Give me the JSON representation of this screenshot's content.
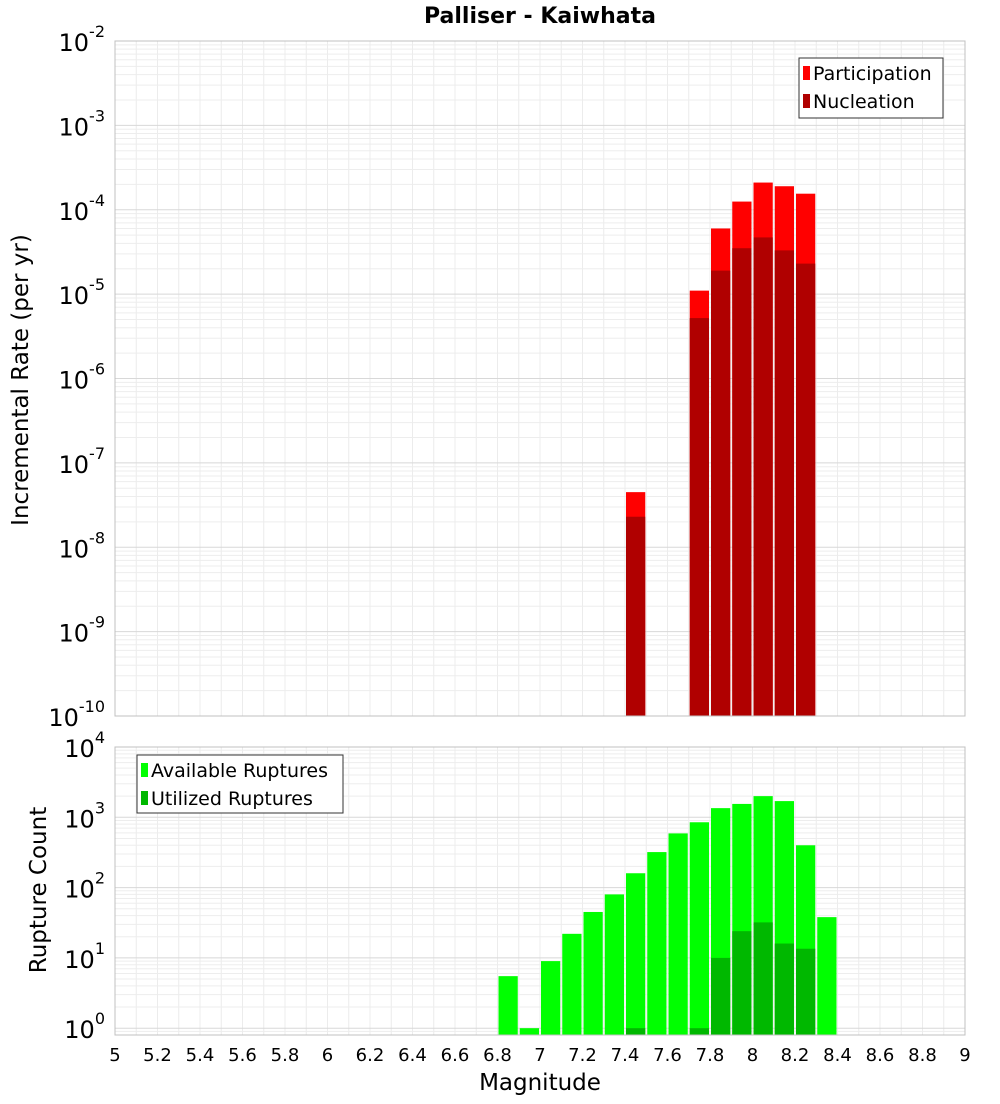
{
  "chart_data": [
    {
      "type": "bar",
      "title": "Palliser - Kaiwhata",
      "xlabel": "",
      "ylabel": "Incremental Rate (per yr)",
      "xlim": [
        5,
        9
      ],
      "ylim": [
        1e-10,
        0.01
      ],
      "yscale": "log",
      "bar_width": 0.1,
      "grid": true,
      "legend": "top-right",
      "y_ticks": [
        {
          "mantissa": "10",
          "exp": "-10",
          "value": 1e-10
        },
        {
          "mantissa": "10",
          "exp": "-9",
          "value": 1e-09
        },
        {
          "mantissa": "10",
          "exp": "-8",
          "value": 1e-08
        },
        {
          "mantissa": "10",
          "exp": "-7",
          "value": 1e-07
        },
        {
          "mantissa": "10",
          "exp": "-6",
          "value": 1e-06
        },
        {
          "mantissa": "10",
          "exp": "-5",
          "value": 1e-05
        },
        {
          "mantissa": "10",
          "exp": "-4",
          "value": 0.0001
        },
        {
          "mantissa": "10",
          "exp": "-3",
          "value": 0.001
        },
        {
          "mantissa": "10",
          "exp": "-2",
          "value": 0.01
        }
      ],
      "series": [
        {
          "name": "Participation",
          "color": "#ff0000",
          "x": [
            7.45,
            7.75,
            7.85,
            7.95,
            8.05,
            8.15,
            8.25
          ],
          "values": [
            4.5e-08,
            1.1e-05,
            6e-05,
            0.000125,
            0.00021,
            0.00019,
            0.000155
          ]
        },
        {
          "name": "Nucleation",
          "color": "#b00000",
          "x": [
            7.45,
            7.75,
            7.85,
            7.95,
            8.05,
            8.15,
            8.25
          ],
          "values": [
            2.3e-08,
            5.2e-06,
            1.9e-05,
            3.5e-05,
            4.7e-05,
            3.3e-05,
            2.3e-05
          ]
        }
      ]
    },
    {
      "type": "bar",
      "title": "",
      "xlabel": "Magnitude",
      "ylabel": "Rupture Count",
      "xlim": [
        5,
        9
      ],
      "ylim": [
        0.8,
        10000
      ],
      "yscale": "log",
      "bar_width": 0.1,
      "grid": true,
      "legend": "top-left",
      "x_ticks": [
        "5",
        "5.2",
        "5.4",
        "5.6",
        "5.8",
        "6",
        "6.2",
        "6.4",
        "6.6",
        "6.8",
        "7",
        "7.2",
        "7.4",
        "7.6",
        "7.8",
        "8",
        "8.2",
        "8.4",
        "8.6",
        "8.8",
        "9"
      ],
      "y_ticks": [
        {
          "mantissa": "10",
          "exp": "0",
          "value": 1
        },
        {
          "mantissa": "10",
          "exp": "1",
          "value": 10
        },
        {
          "mantissa": "10",
          "exp": "2",
          "value": 100
        },
        {
          "mantissa": "10",
          "exp": "3",
          "value": 1000
        },
        {
          "mantissa": "10",
          "exp": "4",
          "value": 10000
        }
      ],
      "series": [
        {
          "name": "Available Ruptures",
          "color": "#00ff00",
          "x": [
            6.85,
            6.95,
            7.05,
            7.15,
            7.25,
            7.35,
            7.45,
            7.55,
            7.65,
            7.75,
            7.85,
            7.95,
            8.05,
            8.15,
            8.25,
            8.35
          ],
          "values": [
            5.5,
            1,
            9,
            22,
            45,
            80,
            160,
            320,
            590,
            850,
            1350,
            1550,
            2000,
            1700,
            400,
            38
          ]
        },
        {
          "name": "Utilized Ruptures",
          "color": "#00b800",
          "x": [
            7.45,
            7.75,
            7.85,
            7.95,
            8.05,
            8.15,
            8.25
          ],
          "values": [
            1,
            1,
            10,
            24,
            32,
            16,
            13.5
          ]
        }
      ]
    }
  ]
}
